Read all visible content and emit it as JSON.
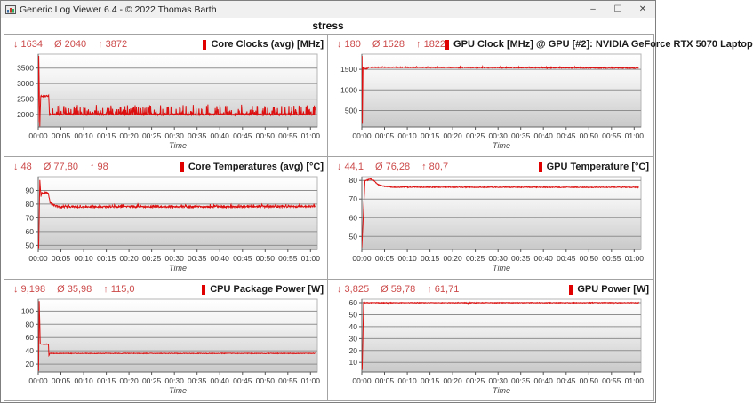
{
  "window": {
    "title": "Generic Log Viewer 6.4 - © 2022 Thomas Barth",
    "controls": {
      "minimize": "–",
      "maximize": "☐",
      "close": "✕"
    }
  },
  "page_title": "stress",
  "stat_symbols": {
    "min": "↓",
    "avg": "Ø",
    "max": "↑"
  },
  "colors": {
    "line": "#dc1010",
    "stats_text": "#cc4a4a",
    "title_marker": "#e00000",
    "grid_line": "#8f8f8f",
    "plot_bg_top": "#ffffff",
    "plot_bg_bottom": "#c9c9c9",
    "titlebar_bg": "#f0f0f0"
  },
  "time_axis": {
    "label": "Time",
    "ticks": [
      "00:00",
      "00:05",
      "00:10",
      "00:15",
      "00:20",
      "00:25",
      "00:30",
      "00:35",
      "00:40",
      "00:45",
      "00:50",
      "00:55",
      "01:00"
    ],
    "minutes": [
      0,
      5,
      10,
      15,
      20,
      25,
      30,
      35,
      40,
      45,
      50,
      55,
      60
    ]
  },
  "chart_data": [
    {
      "type": "line",
      "title": "Core Clocks (avg) [MHz]",
      "stats": {
        "min": "1634",
        "avg": "2040",
        "max": "3872"
      },
      "yticks": [
        2000,
        2500,
        3000,
        3500
      ],
      "ylim": [
        1600,
        3950
      ],
      "xlim_minutes": [
        0,
        61.5
      ],
      "keypoints": [
        [
          0,
          1750
        ],
        [
          0.12,
          3872
        ],
        [
          0.35,
          1634
        ],
        [
          0.55,
          2590
        ],
        [
          2.3,
          2600
        ],
        [
          2.5,
          1950
        ],
        [
          2.8,
          2010
        ],
        [
          61,
          2000
        ]
      ],
      "noise": 25,
      "spikes": {
        "after": 2.6,
        "prob": 0.3,
        "amp": 300
      }
    },
    {
      "type": "line",
      "title": "GPU Clock [MHz] @ GPU [#2]: NVIDIA GeForce RTX 5070 Laptop",
      "stats": {
        "min": "180",
        "avg": "1528",
        "max": "1822"
      },
      "yticks": [
        500,
        1000,
        1500
      ],
      "ylim": [
        100,
        1870
      ],
      "xlim_minutes": [
        0,
        61.5
      ],
      "keypoints": [
        [
          0,
          1500
        ],
        [
          0.05,
          1822
        ],
        [
          0.12,
          180
        ],
        [
          0.25,
          1540
        ],
        [
          1,
          1510
        ],
        [
          1.5,
          1550
        ],
        [
          61,
          1532
        ]
      ],
      "noise": 9,
      "spikes": {
        "after": 0.5,
        "prob": 0.05,
        "amp": 25
      }
    },
    {
      "type": "line",
      "title": "Core Temperatures (avg) [°C]",
      "stats": {
        "min": "48",
        "avg": "77,80",
        "max": "98"
      },
      "yticks": [
        50,
        60,
        70,
        80,
        90
      ],
      "ylim": [
        47,
        100
      ],
      "xlim_minutes": [
        0,
        61.5
      ],
      "keypoints": [
        [
          0,
          55
        ],
        [
          0.1,
          48
        ],
        [
          0.35,
          98
        ],
        [
          0.6,
          86
        ],
        [
          0.8,
          88.5
        ],
        [
          1.1,
          87.5
        ],
        [
          1.5,
          88.5
        ],
        [
          2.2,
          88
        ],
        [
          2.6,
          81.5
        ],
        [
          3.2,
          79.5
        ],
        [
          4.5,
          78
        ],
        [
          61,
          78.2
        ]
      ],
      "noise": 0.6,
      "spikes": {
        "after": 4,
        "prob": 0.15,
        "amp": 1.5
      }
    },
    {
      "type": "line",
      "title": "GPU Temperature [°C]",
      "stats": {
        "min": "44,1",
        "avg": "76,28",
        "max": "80,7"
      },
      "yticks": [
        50,
        60,
        70,
        80
      ],
      "ylim": [
        43,
        82
      ],
      "xlim_minutes": [
        0,
        61.5
      ],
      "keypoints": [
        [
          0,
          44.1
        ],
        [
          0.7,
          79.8
        ],
        [
          1.2,
          80.2
        ],
        [
          1.9,
          80.7
        ],
        [
          2.6,
          80
        ],
        [
          3.5,
          77.8
        ],
        [
          5,
          76.8
        ],
        [
          7,
          76.4
        ],
        [
          61,
          76.3
        ]
      ],
      "noise": 0.22,
      "spikes": null
    },
    {
      "type": "line",
      "title": "CPU Package Power [W]",
      "stats": {
        "min": "9,198",
        "avg": "35,98",
        "max": "115,0"
      },
      "yticks": [
        20,
        40,
        60,
        80,
        100
      ],
      "ylim": [
        8,
        118
      ],
      "xlim_minutes": [
        0,
        61.5
      ],
      "keypoints": [
        [
          0,
          12
        ],
        [
          0.08,
          9.2
        ],
        [
          0.22,
          115
        ],
        [
          0.45,
          51
        ],
        [
          0.7,
          50
        ],
        [
          2.25,
          50
        ],
        [
          2.35,
          33
        ],
        [
          2.55,
          36
        ],
        [
          61,
          36
        ]
      ],
      "noise": 0.45,
      "spikes": null
    },
    {
      "type": "line",
      "title": "GPU Power [W]",
      "stats": {
        "min": "3,825",
        "avg": "59,78",
        "max": "61,71"
      },
      "yticks": [
        10,
        20,
        30,
        40,
        50,
        60
      ],
      "ylim": [
        2,
        63
      ],
      "xlim_minutes": [
        0,
        61.5
      ],
      "keypoints": [
        [
          0,
          5.5
        ],
        [
          0.08,
          3.825
        ],
        [
          0.4,
          60
        ],
        [
          61,
          60
        ]
      ],
      "noise": 0.3,
      "spikes": {
        "after": 1,
        "prob": 0.015,
        "amp": -2
      }
    }
  ]
}
